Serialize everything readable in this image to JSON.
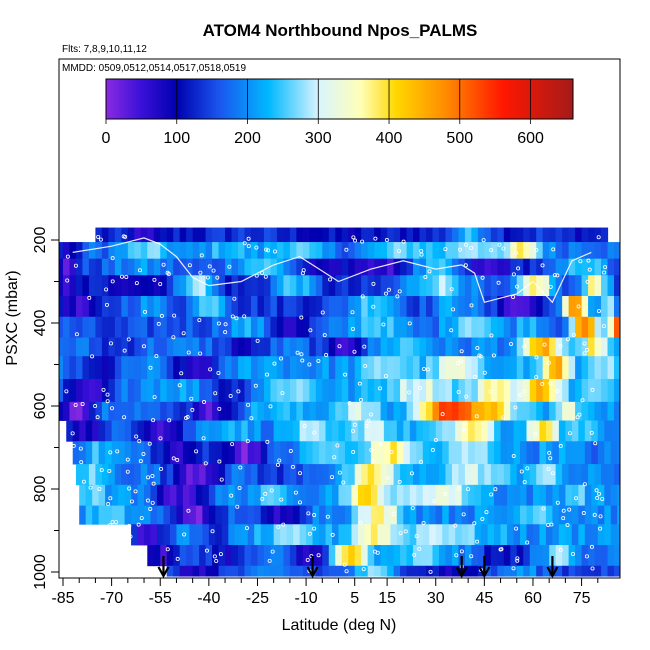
{
  "chart_data": {
    "type": "heatmap",
    "title": "ATOM4 Northbound Npos_PALMS",
    "subtitle_flights": "Flts: 7,8,9,10,11,12",
    "subtitle_dates": "MMDD: 0509,0512,0514,0517,0518,0519",
    "xlabel": "Latitude (deg N)",
    "ylabel": "PSXC (mbar)",
    "xlim": [
      -88,
      88
    ],
    "ylim": [
      1010,
      40
    ],
    "x_ticks": [
      "-85",
      "-70",
      "-55",
      "-40",
      "-25",
      "-10",
      "5",
      "15",
      "30",
      "45",
      "60",
      "75"
    ],
    "y_ticks": [
      "200",
      "400",
      "600",
      "800",
      "1000"
    ],
    "colorbar": {
      "min": 0,
      "max": 660,
      "ticks": [
        "0",
        "100",
        "200",
        "300",
        "400",
        "500",
        "600"
      ],
      "stops": [
        {
          "v": 0,
          "c": "#8a2be2"
        },
        {
          "v": 50,
          "c": "#3a10d8"
        },
        {
          "v": 100,
          "c": "#0000b0"
        },
        {
          "v": 160,
          "c": "#1a55ee"
        },
        {
          "v": 230,
          "c": "#00b8ff"
        },
        {
          "v": 300,
          "c": "#d8f4ff"
        },
        {
          "v": 360,
          "c": "#ffffb8"
        },
        {
          "v": 410,
          "c": "#ffd700"
        },
        {
          "v": 480,
          "c": "#ff8c00"
        },
        {
          "v": 560,
          "c": "#ff1800"
        },
        {
          "v": 660,
          "c": "#a51a1a"
        }
      ]
    },
    "pressure_layers": [
      {
        "p": [
          170,
          205
        ],
        "lat": [
          -75,
          83
        ],
        "base": 120,
        "features": [
          {
            "lat": -60,
            "w": 3,
            "v": 40
          },
          {
            "lat": -30,
            "w": 6,
            "v": 140
          },
          {
            "lat": 0,
            "w": 8,
            "v": 100
          },
          {
            "lat": 40,
            "w": 5,
            "v": 230
          },
          {
            "lat": 60,
            "w": 4,
            "v": 140
          }
        ]
      },
      {
        "p": [
          205,
          245
        ],
        "lat": [
          -87,
          87
        ],
        "base": 170,
        "features": [
          {
            "lat": -84,
            "w": 2,
            "v": 60
          },
          {
            "lat": -60,
            "w": 6,
            "v": 260
          },
          {
            "lat": -35,
            "w": 6,
            "v": 240
          },
          {
            "lat": -15,
            "w": 6,
            "v": 260
          },
          {
            "lat": 20,
            "w": 8,
            "v": 260
          },
          {
            "lat": 40,
            "w": 6,
            "v": 300
          },
          {
            "lat": 56,
            "w": 4,
            "v": 380
          },
          {
            "lat": 75,
            "w": 5,
            "v": 200
          }
        ]
      },
      {
        "p": [
          245,
          285
        ],
        "lat": [
          -87,
          87
        ],
        "base": 140,
        "features": [
          {
            "lat": -85,
            "w": 2,
            "v": 30
          },
          {
            "lat": -62,
            "w": 8,
            "v": 200
          },
          {
            "lat": -25,
            "w": 8,
            "v": 250
          },
          {
            "lat": -5,
            "w": 5,
            "v": 60
          },
          {
            "lat": 12,
            "w": 5,
            "v": 40
          },
          {
            "lat": 30,
            "w": 6,
            "v": 230
          },
          {
            "lat": 45,
            "w": 5,
            "v": 40
          },
          {
            "lat": 75,
            "w": 5,
            "v": 260
          }
        ]
      },
      {
        "p": [
          285,
          335
        ],
        "lat": [
          -87,
          87
        ],
        "base": 120,
        "features": [
          {
            "lat": -85,
            "w": 2,
            "v": 30
          },
          {
            "lat": -63,
            "w": 8,
            "v": 100
          },
          {
            "lat": -45,
            "w": 4,
            "v": 300
          },
          {
            "lat": -15,
            "w": 5,
            "v": 250
          },
          {
            "lat": 30,
            "w": 8,
            "v": 280
          },
          {
            "lat": 60,
            "w": 4,
            "v": 380
          },
          {
            "lat": 78,
            "w": 3,
            "v": 380
          }
        ]
      },
      {
        "p": [
          335,
          385
        ],
        "lat": [
          -87,
          87
        ],
        "base": 140,
        "features": [
          {
            "lat": -80,
            "w": 4,
            "v": 40
          },
          {
            "lat": -60,
            "w": 6,
            "v": 200
          },
          {
            "lat": -40,
            "w": 4,
            "v": 280
          },
          {
            "lat": -25,
            "w": 5,
            "v": 140
          },
          {
            "lat": 10,
            "w": 6,
            "v": 260
          },
          {
            "lat": 35,
            "w": 5,
            "v": 220
          },
          {
            "lat": 55,
            "w": 4,
            "v": 30
          },
          {
            "lat": 72,
            "w": 3,
            "v": 460
          },
          {
            "lat": 82,
            "w": 2,
            "v": 300
          }
        ]
      },
      {
        "p": [
          385,
          435
        ],
        "lat": [
          -87,
          87
        ],
        "base": 160,
        "features": [
          {
            "lat": -70,
            "w": 6,
            "v": 130
          },
          {
            "lat": -30,
            "w": 5,
            "v": 220
          },
          {
            "lat": -15,
            "w": 4,
            "v": 70
          },
          {
            "lat": 10,
            "w": 6,
            "v": 260
          },
          {
            "lat": 40,
            "w": 6,
            "v": 290
          },
          {
            "lat": 58,
            "w": 4,
            "v": 240
          },
          {
            "lat": 75,
            "w": 3,
            "v": 480
          },
          {
            "lat": 85,
            "w": 2,
            "v": 500
          }
        ]
      },
      {
        "p": [
          435,
          480
        ],
        "lat": [
          -87,
          87
        ],
        "base": 180,
        "features": [
          {
            "lat": -70,
            "w": 5,
            "v": 130
          },
          {
            "lat": -30,
            "w": 5,
            "v": 90
          },
          {
            "lat": 0,
            "w": 5,
            "v": 60
          },
          {
            "lat": 20,
            "w": 6,
            "v": 250
          },
          {
            "lat": 45,
            "w": 5,
            "v": 200
          },
          {
            "lat": 62,
            "w": 4,
            "v": 460
          },
          {
            "lat": 78,
            "w": 3,
            "v": 380
          }
        ]
      },
      {
        "p": [
          480,
          535
        ],
        "lat": [
          -87,
          87
        ],
        "base": 200,
        "features": [
          {
            "lat": -75,
            "w": 6,
            "v": 100
          },
          {
            "lat": -45,
            "w": 6,
            "v": 60
          },
          {
            "lat": -25,
            "w": 5,
            "v": 220
          },
          {
            "lat": 15,
            "w": 6,
            "v": 280
          },
          {
            "lat": 35,
            "w": 5,
            "v": 330
          },
          {
            "lat": 52,
            "w": 4,
            "v": 240
          },
          {
            "lat": 66,
            "w": 3,
            "v": 460
          },
          {
            "lat": 80,
            "w": 3,
            "v": 300
          }
        ]
      },
      {
        "p": [
          535,
          590
        ],
        "lat": [
          -87,
          87
        ],
        "base": 210,
        "features": [
          {
            "lat": -78,
            "w": 6,
            "v": 30
          },
          {
            "lat": -52,
            "w": 5,
            "v": 220
          },
          {
            "lat": -35,
            "w": 5,
            "v": 120
          },
          {
            "lat": -15,
            "w": 5,
            "v": 280
          },
          {
            "lat": 25,
            "w": 8,
            "v": 320
          },
          {
            "lat": 48,
            "w": 5,
            "v": 380
          },
          {
            "lat": 62,
            "w": 4,
            "v": 450
          },
          {
            "lat": 78,
            "w": 3,
            "v": 260
          }
        ]
      },
      {
        "p": [
          590,
          635
        ],
        "lat": [
          -87,
          87
        ],
        "base": 200,
        "features": [
          {
            "lat": -82,
            "w": 4,
            "v": 30
          },
          {
            "lat": -55,
            "w": 5,
            "v": 150
          },
          {
            "lat": -40,
            "w": 5,
            "v": 40
          },
          {
            "lat": -20,
            "w": 6,
            "v": 230
          },
          {
            "lat": 5,
            "w": 6,
            "v": 300
          },
          {
            "lat": 18,
            "w": 4,
            "v": 180
          },
          {
            "lat": 35,
            "w": 8,
            "v": 560
          },
          {
            "lat": 48,
            "w": 4,
            "v": 420
          },
          {
            "lat": 58,
            "w": 3,
            "v": 230
          },
          {
            "lat": 70,
            "w": 3,
            "v": 330
          }
        ]
      },
      {
        "p": [
          635,
          685
        ],
        "lat": [
          -84,
          87
        ],
        "base": 190,
        "features": [
          {
            "lat": -78,
            "w": 5,
            "v": 80
          },
          {
            "lat": -55,
            "w": 5,
            "v": 60
          },
          {
            "lat": -35,
            "w": 5,
            "v": 240
          },
          {
            "lat": -10,
            "w": 5,
            "v": 270
          },
          {
            "lat": 10,
            "w": 5,
            "v": 320
          },
          {
            "lat": 25,
            "w": 6,
            "v": 230
          },
          {
            "lat": 40,
            "w": 5,
            "v": 380
          },
          {
            "lat": 62,
            "w": 4,
            "v": 380
          },
          {
            "lat": 75,
            "w": 3,
            "v": 260
          }
        ]
      },
      {
        "p": [
          685,
          740
        ],
        "lat": [
          -82,
          87
        ],
        "base": 180,
        "features": [
          {
            "lat": -75,
            "w": 5,
            "v": 230
          },
          {
            "lat": -50,
            "w": 5,
            "v": 60
          },
          {
            "lat": -30,
            "w": 5,
            "v": 30
          },
          {
            "lat": -5,
            "w": 5,
            "v": 260
          },
          {
            "lat": 15,
            "w": 6,
            "v": 380
          },
          {
            "lat": 40,
            "w": 8,
            "v": 280
          },
          {
            "lat": 65,
            "w": 4,
            "v": 220
          }
        ]
      },
      {
        "p": [
          740,
          790
        ],
        "lat": [
          -81,
          87
        ],
        "base": 190,
        "features": [
          {
            "lat": -78,
            "w": 4,
            "v": 260
          },
          {
            "lat": -45,
            "w": 6,
            "v": 40
          },
          {
            "lat": -20,
            "w": 5,
            "v": 130
          },
          {
            "lat": 10,
            "w": 5,
            "v": 380
          },
          {
            "lat": 40,
            "w": 8,
            "v": 300
          },
          {
            "lat": 62,
            "w": 4,
            "v": 280
          }
        ]
      },
      {
        "p": [
          790,
          840
        ],
        "lat": [
          -80,
          87
        ],
        "base": 200,
        "features": [
          {
            "lat": -78,
            "w": 4,
            "v": 260
          },
          {
            "lat": -50,
            "w": 6,
            "v": 40
          },
          {
            "lat": -20,
            "w": 5,
            "v": 240
          },
          {
            "lat": 8,
            "w": 5,
            "v": 400
          },
          {
            "lat": 30,
            "w": 8,
            "v": 330
          },
          {
            "lat": 55,
            "w": 5,
            "v": 200
          },
          {
            "lat": 72,
            "w": 3,
            "v": 260
          }
        ]
      },
      {
        "p": [
          840,
          885
        ],
        "lat": [
          -80,
          87
        ],
        "base": 200,
        "features": [
          {
            "lat": -72,
            "w": 5,
            "v": 240
          },
          {
            "lat": -45,
            "w": 6,
            "v": 30
          },
          {
            "lat": -20,
            "w": 5,
            "v": 60
          },
          {
            "lat": 12,
            "w": 5,
            "v": 370
          },
          {
            "lat": 35,
            "w": 8,
            "v": 200
          },
          {
            "lat": 60,
            "w": 4,
            "v": 280
          }
        ]
      },
      {
        "p": [
          885,
          935
        ],
        "lat": [
          -64,
          87
        ],
        "base": 210,
        "features": [
          {
            "lat": -60,
            "w": 4,
            "v": 40
          },
          {
            "lat": -40,
            "w": 5,
            "v": 130
          },
          {
            "lat": -15,
            "w": 5,
            "v": 260
          },
          {
            "lat": 10,
            "w": 5,
            "v": 380
          },
          {
            "lat": 30,
            "w": 8,
            "v": 300
          },
          {
            "lat": 60,
            "w": 5,
            "v": 200
          }
        ]
      },
      {
        "p": [
          935,
          985
        ],
        "lat": [
          -59,
          87
        ],
        "base": 180,
        "features": [
          {
            "lat": -55,
            "w": 4,
            "v": 60
          },
          {
            "lat": -35,
            "w": 5,
            "v": 100
          },
          {
            "lat": -10,
            "w": 4,
            "v": 60
          },
          {
            "lat": 3,
            "w": 4,
            "v": 410
          },
          {
            "lat": 25,
            "w": 6,
            "v": 260
          },
          {
            "lat": 50,
            "w": 5,
            "v": 100
          },
          {
            "lat": 68,
            "w": 3,
            "v": 300
          }
        ]
      },
      {
        "p": [
          985,
          1010
        ],
        "lat": [
          -53,
          86
        ],
        "base": 150,
        "features": [
          {
            "lat": -45,
            "w": 4,
            "v": 60
          },
          {
            "lat": -20,
            "w": 5,
            "v": 180
          },
          {
            "lat": 10,
            "w": 5,
            "v": 260
          },
          {
            "lat": 35,
            "w": 6,
            "v": 90
          },
          {
            "lat": 55,
            "w": 5,
            "v": 200
          }
        ]
      }
    ],
    "flight_markers_lat": [
      -54,
      -8,
      38,
      45,
      66
    ],
    "flight_tracks": [
      {
        "lat": [
          -82,
          -70,
          -60,
          -55,
          -50,
          -45,
          -40
        ],
        "p": [
          230,
          215,
          195,
          210,
          240,
          290,
          310
        ]
      },
      {
        "lat": [
          -40,
          -30,
          -20,
          -12,
          -8
        ],
        "p": [
          310,
          300,
          260,
          240,
          260
        ]
      },
      {
        "lat": [
          -8,
          0,
          10,
          20,
          30,
          38
        ],
        "p": [
          260,
          300,
          270,
          250,
          270,
          260
        ]
      },
      {
        "lat": [
          38,
          42,
          45,
          50,
          55,
          60,
          66,
          72,
          78
        ],
        "p": [
          260,
          280,
          350,
          340,
          330,
          300,
          350,
          250,
          230
        ]
      }
    ]
  }
}
